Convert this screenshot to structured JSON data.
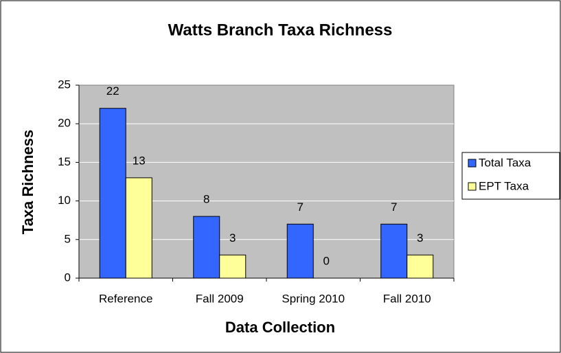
{
  "chart_data": {
    "type": "bar",
    "title": "Watts Branch Taxa Richness",
    "x_label": "Data Collection",
    "y_label": "Taxa Richness",
    "categories": [
      "Reference",
      "Fall 2009",
      "Spring 2010",
      "Fall 2010"
    ],
    "series": [
      {
        "name": "Total Taxa",
        "color": "#3366ff",
        "values": [
          22,
          8,
          7,
          7
        ]
      },
      {
        "name": "EPT Taxa",
        "color": "#ffff99",
        "values": [
          13,
          3,
          0,
          3
        ]
      }
    ],
    "ylim": [
      0,
      25
    ],
    "yticks": [
      0,
      5,
      10,
      15,
      20,
      25
    ],
    "grid": true,
    "legend": "right"
  }
}
